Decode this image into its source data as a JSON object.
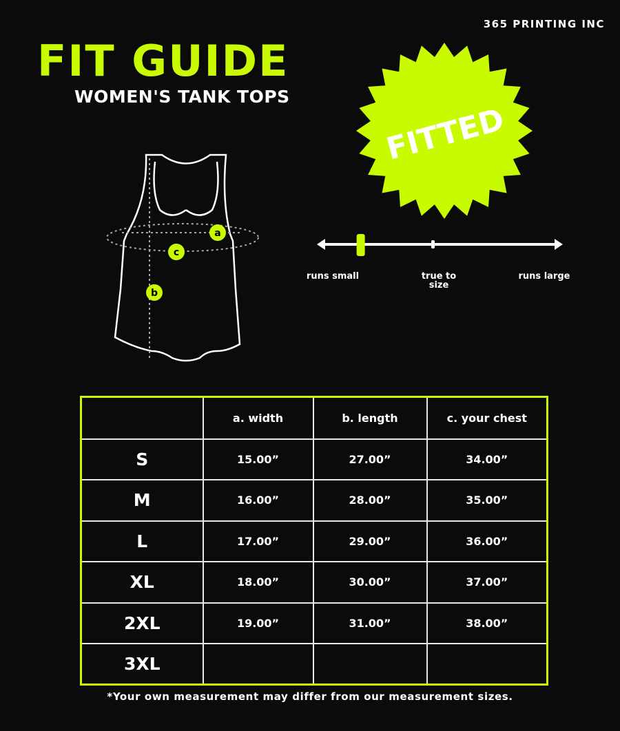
{
  "brand": "365 PRINTING INC",
  "title": "FIT GUIDE",
  "subtitle": "WOMEN'S TANK TOPS",
  "badge": {
    "text": "FITTED",
    "color": "#c8fb00"
  },
  "diagram_labels": {
    "a": "a",
    "b": "b",
    "c": "c"
  },
  "fit_scale": {
    "left": "runs small",
    "middle": "true to size",
    "right": "runs large",
    "marker_position": 0.17
  },
  "table": {
    "headers": [
      "",
      "a. width",
      "b. length",
      "c. your chest"
    ],
    "rows": [
      [
        "S",
        "15.00”",
        "27.00”",
        "34.00”"
      ],
      [
        "M",
        "16.00”",
        "28.00”",
        "35.00”"
      ],
      [
        "L",
        "17.00”",
        "29.00”",
        "36.00”"
      ],
      [
        "XL",
        "18.00”",
        "30.00”",
        "37.00”"
      ],
      [
        "2XL",
        "19.00”",
        "31.00”",
        "38.00”"
      ],
      [
        "3XL",
        "",
        "",
        ""
      ]
    ]
  },
  "note": "*Your own measurement may differ from our measurement sizes.",
  "accent": "#c8fb00"
}
